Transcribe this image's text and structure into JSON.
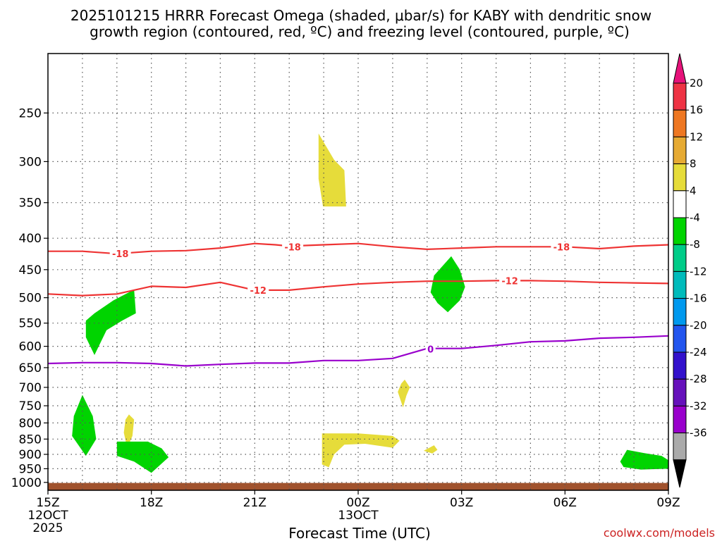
{
  "chart_data": {
    "type": "time-height",
    "title_line1": "2025101215 HRRR Forecast Omega (shaded, μbar/s) for KABY with dendritic snow",
    "title_line2": "growth region (contoured, red, ºC) and freezing level (contoured, purple, ºC)",
    "xlabel": "Forecast Time (UTC)",
    "credit": "coolwx.com/models",
    "x_ticks": [
      {
        "h": 0,
        "label": "15Z",
        "sub1": "12OCT",
        "sub2": "2025"
      },
      {
        "h": 3,
        "label": "18Z"
      },
      {
        "h": 6,
        "label": "21Z"
      },
      {
        "h": 9,
        "label": "00Z",
        "sub1": "13OCT"
      },
      {
        "h": 12,
        "label": "03Z"
      },
      {
        "h": 15,
        "label": "06Z"
      },
      {
        "h": 18,
        "label": "09Z"
      }
    ],
    "xlim_hours": [
      0,
      18
    ],
    "y_levels_hPa": [
      250,
      300,
      350,
      400,
      450,
      500,
      550,
      600,
      650,
      700,
      750,
      800,
      850,
      900,
      950,
      1000
    ],
    "ylim_hPa": [
      200,
      1030
    ],
    "grid": true,
    "contours": [
      {
        "value": -18,
        "label": "-18",
        "color": "#ee3333",
        "points": [
          [
            0,
            420
          ],
          [
            1,
            420
          ],
          [
            2,
            424
          ],
          [
            3,
            420
          ],
          [
            4,
            419
          ],
          [
            5,
            415
          ],
          [
            6,
            408
          ],
          [
            6.6,
            410
          ],
          [
            7,
            412
          ],
          [
            8,
            410
          ],
          [
            9,
            408
          ],
          [
            10,
            413
          ],
          [
            11,
            417
          ],
          [
            12,
            415
          ],
          [
            13,
            413
          ],
          [
            14,
            413
          ],
          [
            15,
            413
          ],
          [
            16,
            416
          ],
          [
            17,
            412
          ],
          [
            18,
            410
          ]
        ],
        "label_positions": [
          [
            2.1,
            424
          ],
          [
            7.1,
            413
          ],
          [
            14.9,
            413
          ]
        ]
      },
      {
        "value": -12,
        "label": "-12",
        "color": "#ee3333",
        "points": [
          [
            0,
            493
          ],
          [
            1,
            496
          ],
          [
            2,
            493
          ],
          [
            3,
            479
          ],
          [
            4,
            481
          ],
          [
            5,
            472
          ],
          [
            6,
            486
          ],
          [
            7,
            486
          ],
          [
            8,
            480
          ],
          [
            9,
            475
          ],
          [
            10,
            472
          ],
          [
            11,
            470
          ],
          [
            12,
            470
          ],
          [
            13,
            469
          ],
          [
            14,
            469
          ],
          [
            15,
            470
          ],
          [
            16,
            472
          ],
          [
            17,
            473
          ],
          [
            18,
            474
          ]
        ],
        "label_positions": [
          [
            6.1,
            486
          ],
          [
            13.4,
            469
          ]
        ]
      },
      {
        "value": 0,
        "label": "0",
        "color": "#9900cc",
        "points": [
          [
            0,
            640
          ],
          [
            1,
            638
          ],
          [
            2,
            638
          ],
          [
            3,
            640
          ],
          [
            4,
            646
          ],
          [
            5,
            642
          ],
          [
            6,
            639
          ],
          [
            7,
            639
          ],
          [
            8,
            633
          ],
          [
            9,
            633
          ],
          [
            10,
            628
          ],
          [
            11,
            605
          ],
          [
            12,
            605
          ],
          [
            13,
            598
          ],
          [
            14,
            590
          ],
          [
            15,
            588
          ],
          [
            16,
            582
          ],
          [
            17,
            580
          ],
          [
            18,
            577
          ]
        ],
        "label_positions": [
          [
            11.1,
            606
          ]
        ]
      }
    ],
    "omega_regions": [
      {
        "fill": "#e6dc3a",
        "points": [
          [
            7.85,
            270
          ],
          [
            8.3,
            298
          ],
          [
            8.6,
            310
          ],
          [
            8.65,
            355
          ],
          [
            7.98,
            355
          ],
          [
            7.85,
            320
          ]
        ]
      },
      {
        "fill": "#00d400",
        "points": [
          [
            1.35,
            530
          ],
          [
            1.9,
            505
          ],
          [
            2.2,
            495
          ],
          [
            2.5,
            485
          ],
          [
            2.55,
            530
          ],
          [
            2.15,
            545
          ],
          [
            1.7,
            565
          ],
          [
            1.35,
            620
          ],
          [
            1.1,
            580
          ],
          [
            1.1,
            545
          ]
        ]
      },
      {
        "fill": "#00d400",
        "points": [
          [
            11.7,
            428
          ],
          [
            11.95,
            450
          ],
          [
            12.1,
            480
          ],
          [
            11.95,
            505
          ],
          [
            11.6,
            528
          ],
          [
            11.3,
            510
          ],
          [
            11.1,
            490
          ],
          [
            11.2,
            460
          ]
        ]
      },
      {
        "fill": "#e6dc3a",
        "points": [
          [
            10.35,
            680
          ],
          [
            10.5,
            700
          ],
          [
            10.4,
            722
          ],
          [
            10.3,
            755
          ],
          [
            10.15,
            712
          ],
          [
            10.25,
            690
          ]
        ]
      },
      {
        "fill": "#00d400",
        "points": [
          [
            1.0,
            720
          ],
          [
            1.3,
            780
          ],
          [
            1.4,
            850
          ],
          [
            1.1,
            905
          ],
          [
            0.7,
            840
          ],
          [
            0.75,
            780
          ]
        ]
      },
      {
        "fill": "#e6dc3a",
        "points": [
          [
            2.35,
            775
          ],
          [
            2.5,
            790
          ],
          [
            2.45,
            840
          ],
          [
            2.3,
            878
          ],
          [
            2.2,
            830
          ],
          [
            2.25,
            790
          ]
        ]
      },
      {
        "fill": "#00d400",
        "points": [
          [
            2.0,
            858
          ],
          [
            2.9,
            858
          ],
          [
            3.3,
            880
          ],
          [
            3.5,
            910
          ],
          [
            3.0,
            965
          ],
          [
            2.5,
            925
          ],
          [
            2.0,
            905
          ]
        ]
      },
      {
        "fill": "#e6dc3a",
        "points": [
          [
            7.95,
            832
          ],
          [
            9.0,
            832
          ],
          [
            10.0,
            840
          ],
          [
            10.2,
            855
          ],
          [
            10.0,
            878
          ],
          [
            9.2,
            865
          ],
          [
            8.6,
            868
          ],
          [
            8.3,
            900
          ],
          [
            8.15,
            945
          ],
          [
            7.95,
            935
          ]
        ]
      },
      {
        "fill": "#e6dc3a",
        "points": [
          [
            11.2,
            870
          ],
          [
            11.3,
            885
          ],
          [
            11.15,
            897
          ],
          [
            10.9,
            888
          ]
        ]
      },
      {
        "fill": "#00d400",
        "points": [
          [
            16.8,
            885
          ],
          [
            17.3,
            896
          ],
          [
            17.8,
            905
          ],
          [
            18.0,
            920
          ],
          [
            18.0,
            950
          ],
          [
            17.2,
            953
          ],
          [
            16.7,
            944
          ],
          [
            16.6,
            925
          ]
        ]
      }
    ],
    "terrain": {
      "fill": "#a0522d",
      "top_hPa": 1002,
      "bottom_hPa": 1030
    },
    "colorbar": {
      "labels": [
        "20",
        "16",
        "12",
        "8",
        "4",
        "-4",
        "-8",
        "-12",
        "-16",
        "-20",
        "-24",
        "-28",
        "-32",
        "-36"
      ],
      "segments": [
        {
          "color": "#ee3344"
        },
        {
          "color": "#ee7722"
        },
        {
          "color": "#e6aa33"
        },
        {
          "color": "#e6dc3a"
        },
        {
          "color": "#ffffff"
        },
        {
          "color": "#00d400"
        },
        {
          "color": "#00cc88"
        },
        {
          "color": "#00bbbb"
        },
        {
          "color": "#0099ee"
        },
        {
          "color": "#2255ee"
        },
        {
          "color": "#3311cc"
        },
        {
          "color": "#6611bb"
        },
        {
          "color": "#9900cc"
        },
        {
          "color": "#aaaaaa"
        }
      ],
      "top_arrow": "#e6127a",
      "bottom_arrow": "#000000"
    }
  }
}
